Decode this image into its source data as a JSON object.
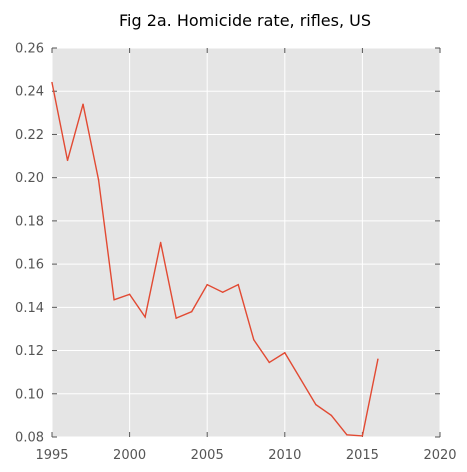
{
  "chart_data": {
    "type": "line",
    "title": "Fig 2a. Homicide rate, rifles, US",
    "xlabel": "",
    "ylabel": "",
    "xlim": [
      1995,
      2020
    ],
    "ylim": [
      0.08,
      0.26
    ],
    "xticks": [
      1995,
      2000,
      2005,
      2010,
      2015,
      2020
    ],
    "xtick_labels": [
      "1995",
      "2000",
      "2005",
      "2010",
      "2015",
      "2020"
    ],
    "yticks": [
      0.08,
      0.1,
      0.12,
      0.14,
      0.16,
      0.18,
      0.2,
      0.22,
      0.24,
      0.26
    ],
    "ytick_labels": [
      "0.08",
      "0.10",
      "0.12",
      "0.14",
      "0.16",
      "0.18",
      "0.20",
      "0.22",
      "0.24",
      "0.26"
    ],
    "grid": true,
    "legend": "none",
    "colors": {
      "background": "#e5e5e5",
      "grid": "#ffffff",
      "line": "#e24a33"
    },
    "series": [
      {
        "x": [
          1995,
          1996,
          1997,
          1998,
          1999,
          2000,
          2001,
          2002,
          2003,
          2004,
          2005,
          2006,
          2007,
          2008,
          2009,
          2010,
          2011,
          2012,
          2013,
          2014,
          2015,
          2016
        ],
        "values": [
          0.244,
          0.208,
          0.234,
          0.199,
          0.1435,
          0.146,
          0.1355,
          0.17,
          0.135,
          0.138,
          0.1505,
          0.147,
          0.1505,
          0.125,
          0.1145,
          0.119,
          0.107,
          0.095,
          0.09,
          0.081,
          0.0805,
          0.116
        ]
      }
    ]
  }
}
